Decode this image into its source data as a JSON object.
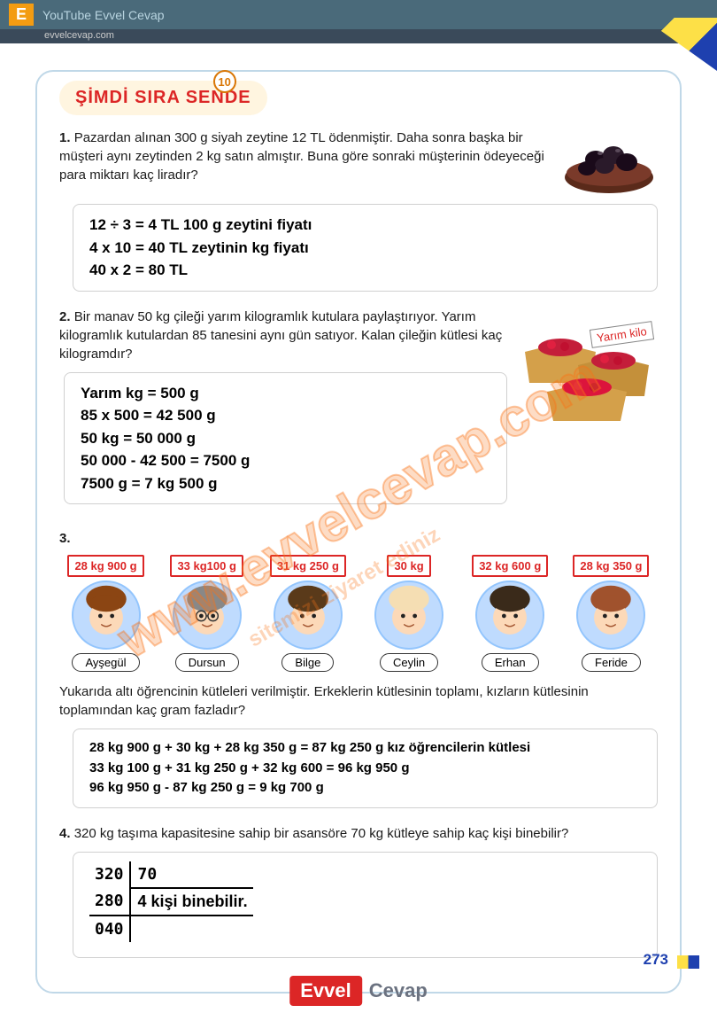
{
  "topbar": {
    "logo": "E",
    "title": "YouTube Evvel Cevap",
    "subtitle": "evvelcevap.com"
  },
  "header": {
    "badge": "10",
    "title": "ŞİMDİ SIRA SENDE"
  },
  "q1": {
    "num": "1.",
    "text": "Pazardan alınan 300 g siyah zeytine 12 TL ödenmiştir. Daha sonra başka bir müşteri aynı zeytinden 2 kg satın almıştır. Buna göre sonraki müşterinin ödeyeceği para miktarı kaç liradır?",
    "ans1": "12 ÷ 3 = 4 TL 100 g zeytini fiyatı",
    "ans2": "4 x 10 = 40 TL zeytinin kg fiyatı",
    "ans3": "40 x 2 = 80 TL"
  },
  "q2": {
    "num": "2.",
    "text": "Bir manav 50 kg çileği yarım kilogramlık kutulara paylaştırıyor. Yarım kilogramlık kutulardan 85 tanesini aynı gün satıyor. Kalan çileğin kütlesi kaç kilogramdır?",
    "label": "Yarım kilo",
    "ans1": "Yarım kg = 500 g",
    "ans2": "85 x 500 = 42 500 g",
    "ans3": "50 kg = 50 000 g",
    "ans4": "50 000 - 42 500 = 7500 g",
    "ans5": "7500 g = 7 kg 500 g"
  },
  "q3": {
    "num": "3.",
    "students": [
      {
        "weight": "28 kg 900 g",
        "name": "Ayşegül",
        "hair": "#8b4513"
      },
      {
        "weight": "33 kg100 g",
        "name": "Dursun",
        "hair": "#888888"
      },
      {
        "weight": "31 kg 250 g",
        "name": "Bilge",
        "hair": "#5a3a1a"
      },
      {
        "weight": "30 kg",
        "name": "Ceylin",
        "hair": "#f5deb3"
      },
      {
        "weight": "32 kg 600 g",
        "name": "Erhan",
        "hair": "#3a2a1a"
      },
      {
        "weight": "28 kg 350 g",
        "name": "Feride",
        "hair": "#a0522d"
      }
    ],
    "text": "Yukarıda altı öğrencinin kütleleri verilmiştir. Erkeklerin kütlesinin toplamı, kızların kütlesinin toplamından kaç gram fazladır?",
    "ans1": "28 kg 900 g + 30 kg + 28 kg 350 g = 87 kg 250 g kız öğrencilerin kütlesi",
    "ans2": "33 kg 100 g + 31 kg 250 g + 32 kg 600 = 96 kg 950 g",
    "ans3": "96 kg 950 g - 87 kg 250 g = 9 kg 700 g"
  },
  "q4": {
    "num": "4.",
    "text": "320 kg taşıma kapasitesine sahip bir asansöre 70 kg kütleye sahip kaç kişi binebilir?",
    "div_dividend": "320",
    "div_divisor": "70",
    "div_sub": "280",
    "div_result": "4 kişi binebilir.",
    "div_remainder": "040"
  },
  "page_number": "273",
  "watermark": "www.evvelcevap.com",
  "watermark2": "sitemizi ziyaret ediniz",
  "footer": {
    "evvel": "Evvel",
    "cevap": "Cevap"
  }
}
